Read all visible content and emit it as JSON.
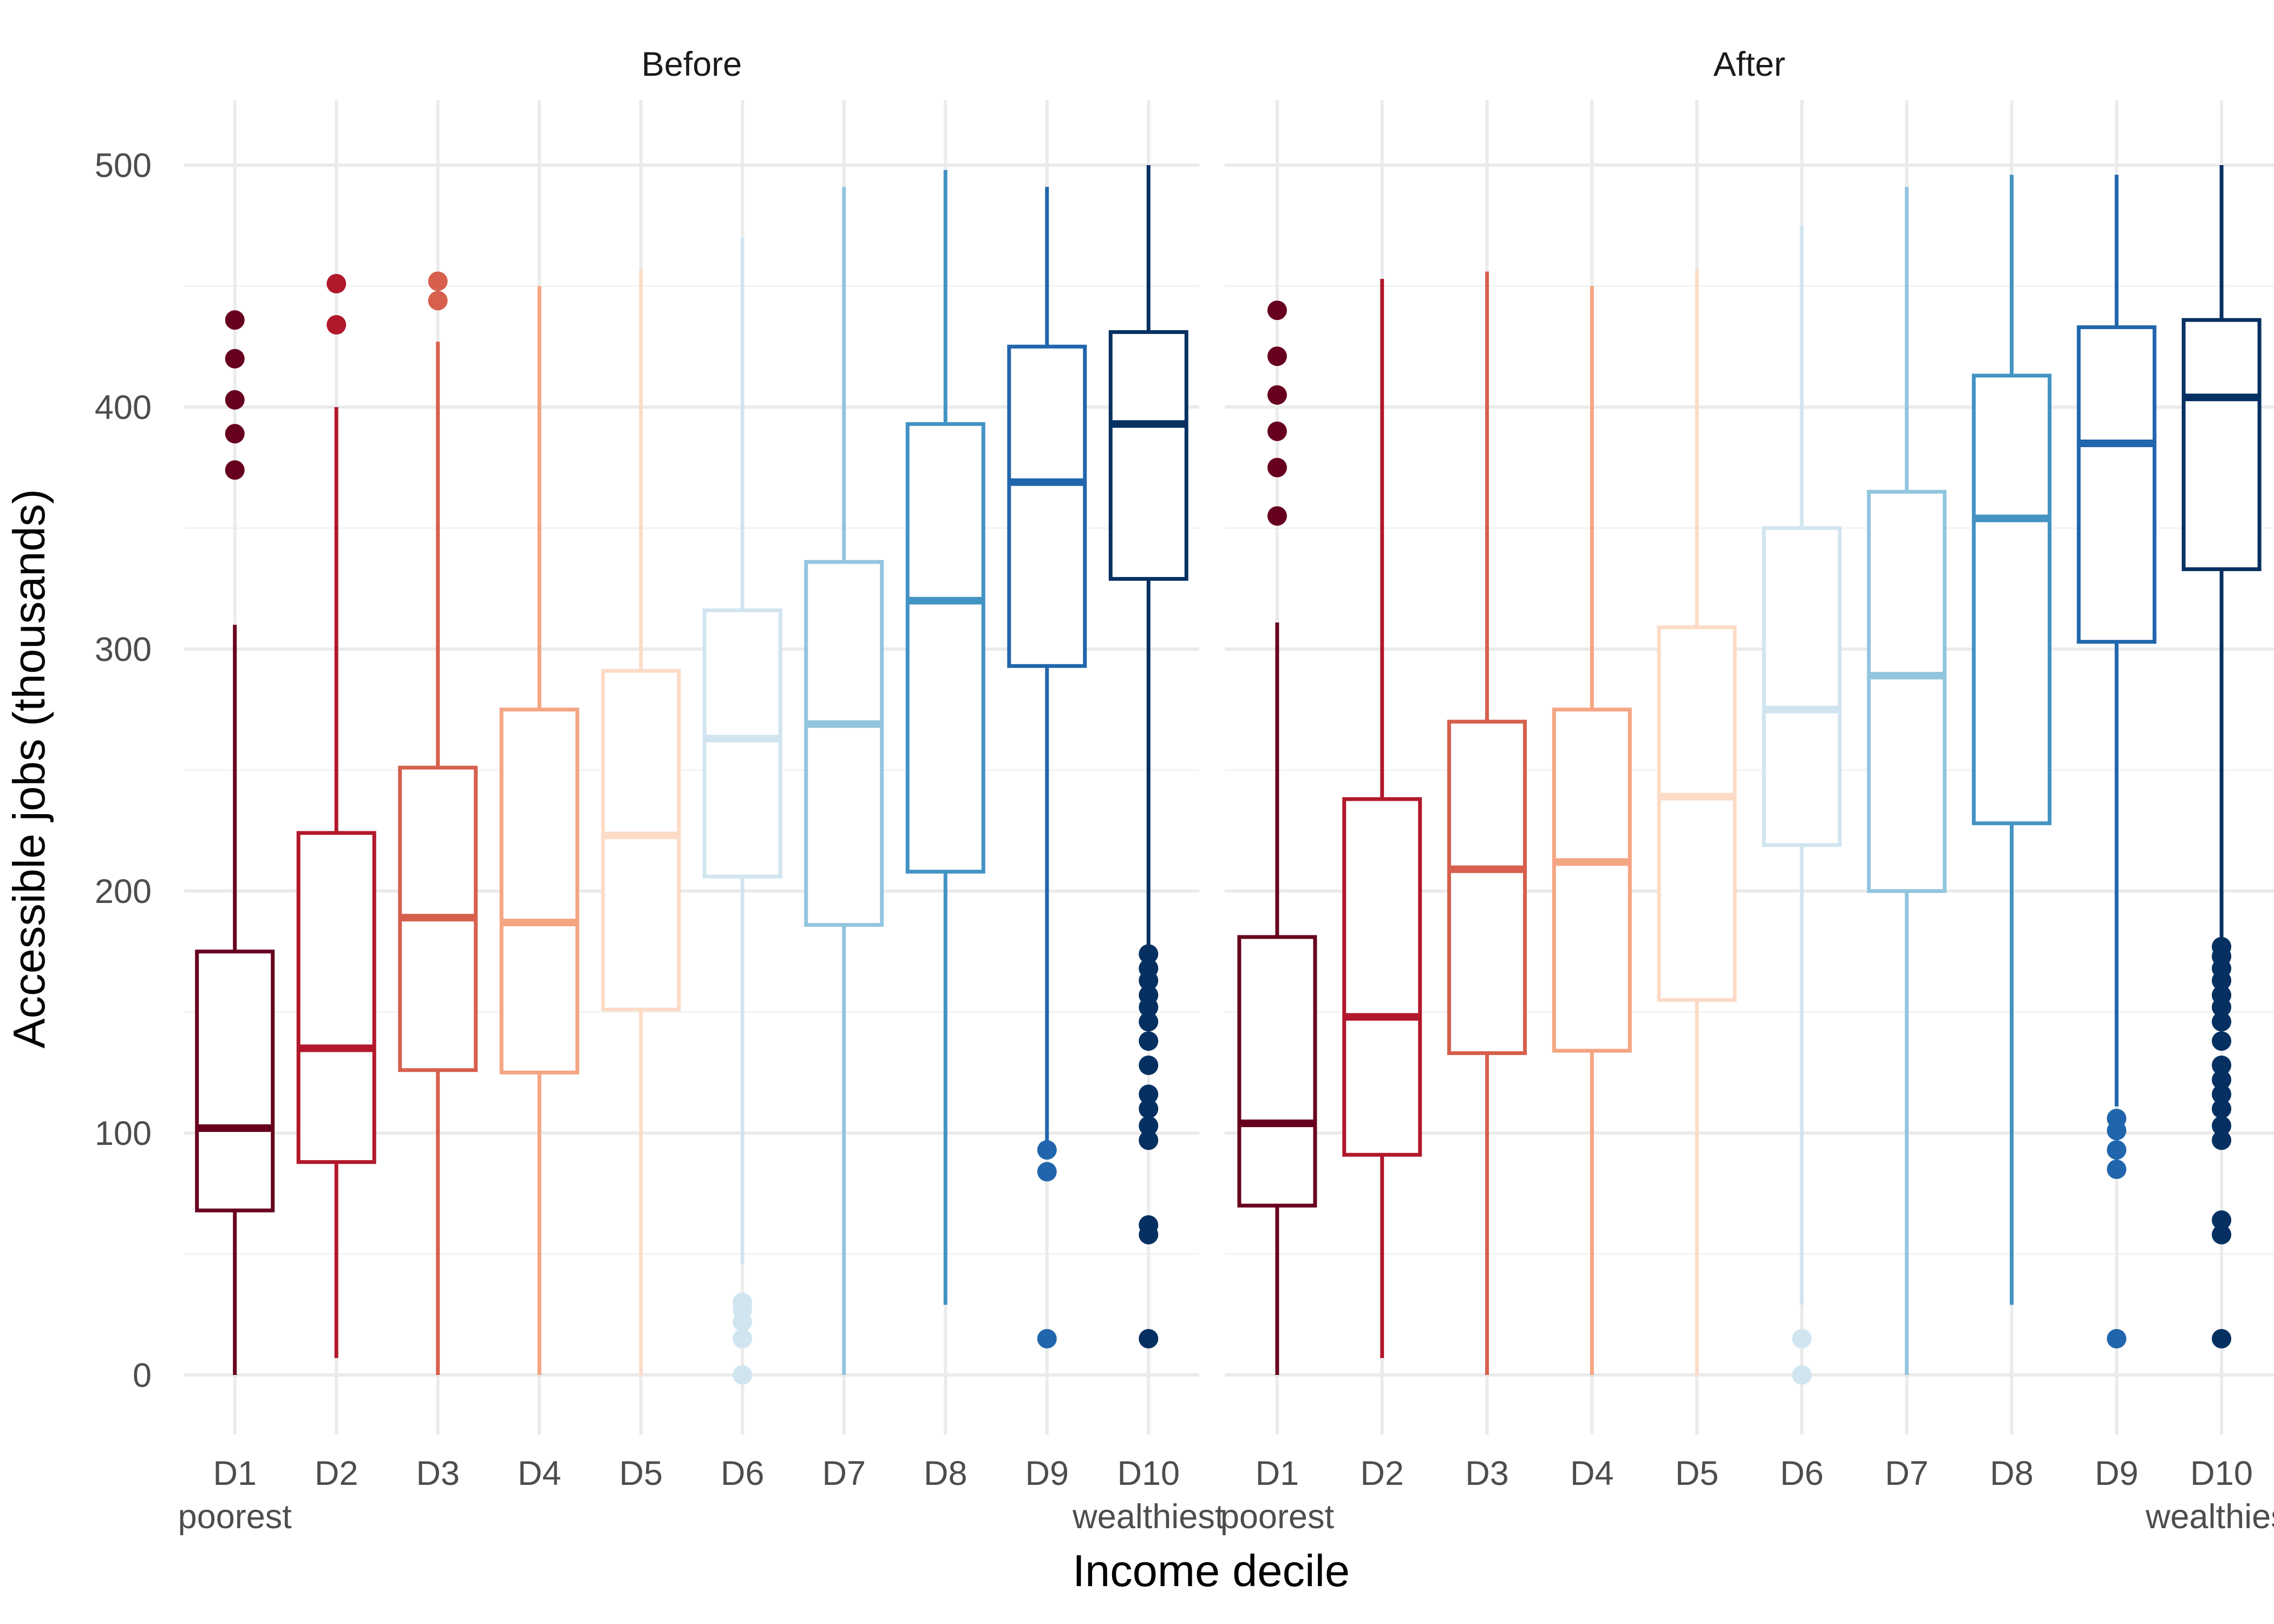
{
  "chart_data": {
    "type": "boxplot",
    "xlabel": "Income decile",
    "ylabel": "Accessible jobs (thousands)",
    "ylim": [
      -25,
      525
    ],
    "yticks": [
      0,
      100,
      200,
      300,
      400,
      500
    ],
    "grid": true,
    "legend": "none",
    "categories": [
      "D1",
      "D2",
      "D3",
      "D4",
      "D5",
      "D6",
      "D7",
      "D8",
      "D9",
      "D10"
    ],
    "category_sublabels": [
      "poorest",
      "",
      "",
      "",
      "",
      "",
      "",
      "",
      "",
      "wealthiest"
    ],
    "colors": [
      "#67001f",
      "#b2182b",
      "#d6604d",
      "#f4a582",
      "#fddbc7",
      "#d1e5f0",
      "#92c5de",
      "#4393c3",
      "#2166ac",
      "#053061"
    ],
    "panels": [
      {
        "title": "Before",
        "boxes": [
          {
            "category": "D1",
            "whisker_low": 0,
            "q1": 68,
            "median": 102,
            "q3": 175,
            "whisker_high": 310,
            "outliers": [
              374,
              389,
              403,
              420,
              436
            ]
          },
          {
            "category": "D2",
            "whisker_low": 7,
            "q1": 88,
            "median": 135,
            "q3": 224,
            "whisker_high": 400,
            "outliers": [
              434,
              451
            ]
          },
          {
            "category": "D3",
            "whisker_low": 0,
            "q1": 126,
            "median": 189,
            "q3": 251,
            "whisker_high": 427,
            "outliers": [
              444,
              452
            ]
          },
          {
            "category": "D4",
            "whisker_low": 0,
            "q1": 125,
            "median": 187,
            "q3": 275,
            "whisker_high": 450,
            "outliers": []
          },
          {
            "category": "D5",
            "whisker_low": 0,
            "q1": 151,
            "median": 223,
            "q3": 291,
            "whisker_high": 457,
            "outliers": []
          },
          {
            "category": "D6",
            "whisker_low": 46,
            "q1": 206,
            "median": 263,
            "q3": 316,
            "whisker_high": 470,
            "outliers": [
              0,
              15,
              22,
              27,
              30
            ]
          },
          {
            "category": "D7",
            "whisker_low": 0,
            "q1": 186,
            "median": 269,
            "q3": 336,
            "whisker_high": 491,
            "outliers": []
          },
          {
            "category": "D8",
            "whisker_low": 29,
            "q1": 208,
            "median": 320,
            "q3": 393,
            "whisker_high": 498,
            "outliers": []
          },
          {
            "category": "D9",
            "whisker_low": 95,
            "q1": 293,
            "median": 369,
            "q3": 425,
            "whisker_high": 491,
            "outliers": [
              15,
              84,
              93
            ]
          },
          {
            "category": "D10",
            "whisker_low": 177,
            "q1": 329,
            "median": 393,
            "q3": 431,
            "whisker_high": 500,
            "outliers": [
              15,
              58,
              62,
              97,
              103,
              110,
              116,
              128,
              138,
              146,
              152,
              157,
              163,
              168,
              174
            ]
          }
        ]
      },
      {
        "title": "After",
        "boxes": [
          {
            "category": "D1",
            "whisker_low": 0,
            "q1": 70,
            "median": 104,
            "q3": 181,
            "whisker_high": 311,
            "outliers": [
              355,
              375,
              390,
              405,
              421,
              440
            ]
          },
          {
            "category": "D2",
            "whisker_low": 7,
            "q1": 91,
            "median": 148,
            "q3": 238,
            "whisker_high": 453,
            "outliers": []
          },
          {
            "category": "D3",
            "whisker_low": 0,
            "q1": 133,
            "median": 209,
            "q3": 270,
            "whisker_high": 456,
            "outliers": []
          },
          {
            "category": "D4",
            "whisker_low": 0,
            "q1": 134,
            "median": 212,
            "q3": 275,
            "whisker_high": 450,
            "outliers": []
          },
          {
            "category": "D5",
            "whisker_low": 0,
            "q1": 155,
            "median": 239,
            "q3": 309,
            "whisker_high": 457,
            "outliers": []
          },
          {
            "category": "D6",
            "whisker_low": 29,
            "q1": 219,
            "median": 275,
            "q3": 350,
            "whisker_high": 475,
            "outliers": [
              0,
              15
            ]
          },
          {
            "category": "D7",
            "whisker_low": 0,
            "q1": 200,
            "median": 289,
            "q3": 365,
            "whisker_high": 491,
            "outliers": []
          },
          {
            "category": "D8",
            "whisker_low": 29,
            "q1": 228,
            "median": 354,
            "q3": 413,
            "whisker_high": 496,
            "outliers": []
          },
          {
            "category": "D9",
            "whisker_low": 111,
            "q1": 303,
            "median": 385,
            "q3": 433,
            "whisker_high": 496,
            "outliers": [
              15,
              85,
              93,
              101,
              106
            ]
          },
          {
            "category": "D10",
            "whisker_low": 179,
            "q1": 333,
            "median": 404,
            "q3": 436,
            "whisker_high": 500,
            "outliers": [
              15,
              58,
              64,
              97,
              103,
              110,
              116,
              122,
              128,
              138,
              146,
              152,
              157,
              163,
              168,
              173,
              177
            ]
          }
        ]
      }
    ]
  }
}
